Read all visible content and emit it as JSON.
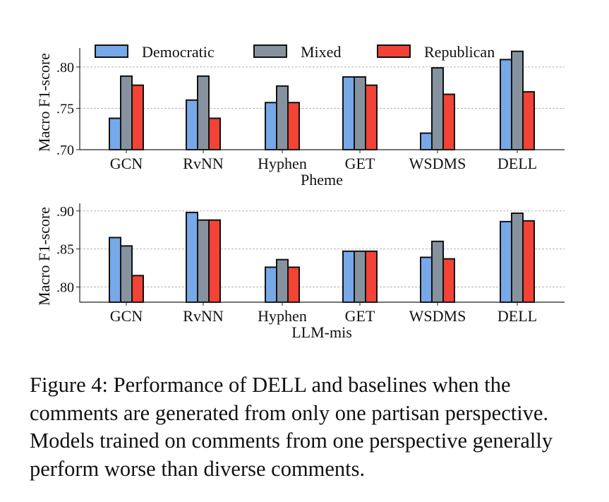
{
  "chart_data": [
    {
      "type": "bar",
      "xlabel": "Pheme",
      "ylabel": "Macro F1-score",
      "categories": [
        "GCN",
        "RvNN",
        "Hyphen",
        "GET",
        "WSDMS",
        "DELL"
      ],
      "ylim": [
        0.7,
        0.823
      ],
      "yticks": [
        0.7,
        0.75,
        0.8
      ],
      "ytick_labels": [
        ".70",
        ".75",
        ".80"
      ],
      "grid": "horizontal dashed",
      "legend": "top",
      "series": [
        {
          "name": "Democratic",
          "color": "#77a8e8",
          "values": [
            0.738,
            0.76,
            0.757,
            0.788,
            0.72,
            0.809
          ]
        },
        {
          "name": "Mixed",
          "color": "#86939f",
          "values": [
            0.789,
            0.789,
            0.777,
            0.788,
            0.799,
            0.819
          ]
        },
        {
          "name": "Republican",
          "color": "#f34236",
          "values": [
            0.778,
            0.738,
            0.757,
            0.778,
            0.767,
            0.77
          ]
        }
      ]
    },
    {
      "type": "bar",
      "xlabel": "LLM-mis",
      "ylabel": "Macro F1-score",
      "categories": [
        "GCN",
        "RvNN",
        "Hyphen",
        "GET",
        "WSDMS",
        "DELL"
      ],
      "ylim": [
        0.78,
        0.91
      ],
      "yticks": [
        0.8,
        0.85,
        0.9
      ],
      "ytick_labels": [
        ".80",
        ".85",
        ".90"
      ],
      "grid": "horizontal dashed",
      "series": [
        {
          "name": "Democratic",
          "color": "#77a8e8",
          "values": [
            0.865,
            0.898,
            0.826,
            0.847,
            0.839,
            0.886
          ]
        },
        {
          "name": "Mixed",
          "color": "#86939f",
          "values": [
            0.854,
            0.888,
            0.836,
            0.847,
            0.86,
            0.897
          ]
        },
        {
          "name": "Republican",
          "color": "#f34236",
          "values": [
            0.815,
            0.888,
            0.826,
            0.847,
            0.837,
            0.887
          ]
        }
      ]
    }
  ],
  "caption": "Figure 4: Performance of DELL and baselines when the comments are generated from only one partisan perspective. Models trained on comments from one perspective generally perform worse than diverse comments."
}
